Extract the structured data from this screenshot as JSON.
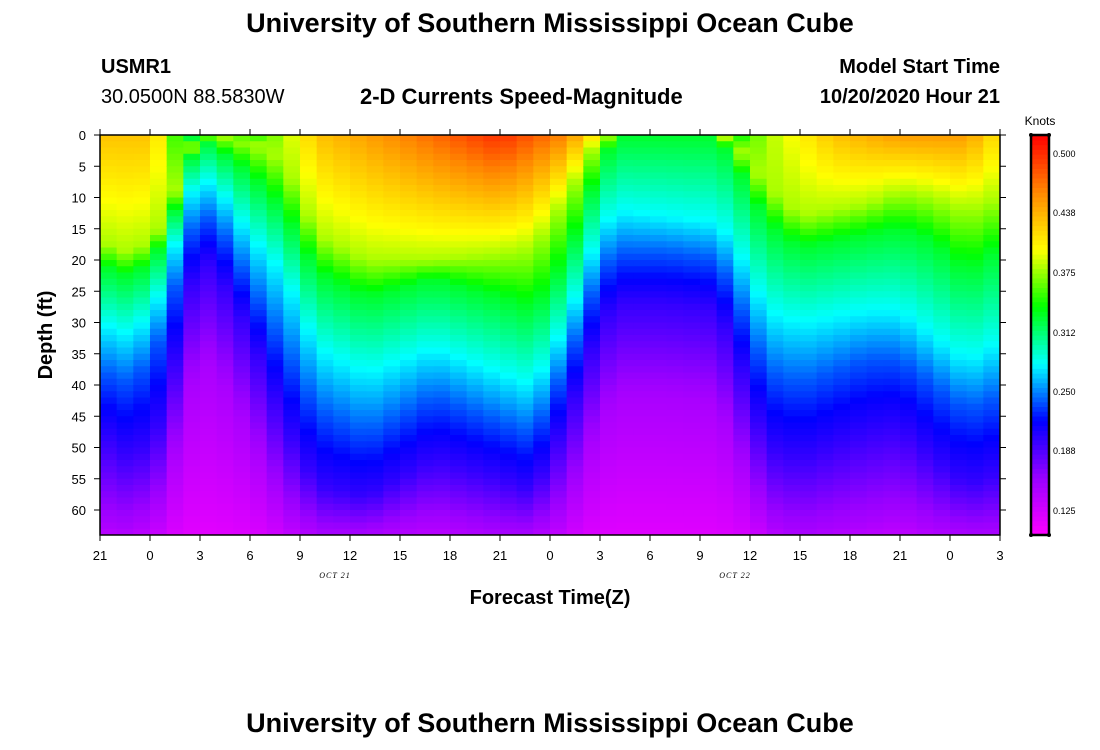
{
  "page": {
    "title": "University of Southern Mississippi Ocean Cube",
    "station_id": "USMR1",
    "station_coords": "30.0500N 88.5830W",
    "chart_heading": "2-D Currents Speed-Magnitude",
    "model_label": "Model Start Time",
    "model_time": "10/20/2020 Hour 21",
    "footer_title": "University of Southern Mississippi Ocean Cube"
  },
  "chart_data": {
    "type": "heatmap",
    "title": "2-D Currents Speed-Magnitude",
    "xlabel": "Forecast Time(Z)",
    "ylabel": "Depth (ft)",
    "x_tick_labels": [
      "21",
      "0",
      "3",
      "6",
      "9",
      "12",
      "15",
      "18",
      "21",
      "0",
      "3",
      "6",
      "9",
      "12",
      "15",
      "18",
      "21",
      "0",
      "3"
    ],
    "x_range_hours": [
      0,
      54
    ],
    "x_tick_step_hours": 3,
    "date_labels": [
      {
        "label": "OCT 21",
        "at_hour": 15
      },
      {
        "label": "OCT 22",
        "at_hour": 39
      }
    ],
    "y_tick_labels": [
      "0",
      "5",
      "10",
      "15",
      "20",
      "25",
      "30",
      "35",
      "40",
      "45",
      "50",
      "55",
      "60"
    ],
    "ylim_ft": [
      0,
      64
    ],
    "y_inverted": true,
    "colorbar": {
      "unit": "Knots",
      "range": [
        0.1,
        0.52
      ],
      "tick_labels": [
        "0.500",
        "0.438",
        "0.375",
        "0.312",
        "0.250",
        "0.188",
        "0.125"
      ],
      "tick_values": [
        0.5,
        0.438,
        0.375,
        0.312,
        0.25,
        0.188,
        0.125
      ],
      "palette": [
        "#ff00ff",
        "#9900ff",
        "#0000ff",
        "#00ffff",
        "#00ff00",
        "#ffff00",
        "#ff8800",
        "#ff0000"
      ]
    },
    "surface_speed_knots": [
      [
        0,
        0.43
      ],
      [
        3,
        0.43
      ],
      [
        4,
        0.39
      ],
      [
        5,
        0.32
      ],
      [
        6,
        0.3
      ],
      [
        7,
        0.31
      ],
      [
        9,
        0.34
      ],
      [
        11,
        0.38
      ],
      [
        13,
        0.43
      ],
      [
        18,
        0.46
      ],
      [
        24,
        0.5
      ],
      [
        28,
        0.46
      ],
      [
        30,
        0.4
      ],
      [
        32,
        0.33
      ],
      [
        36,
        0.31
      ],
      [
        38,
        0.33
      ],
      [
        40,
        0.38
      ],
      [
        44,
        0.43
      ],
      [
        48,
        0.45
      ],
      [
        52,
        0.45
      ],
      [
        54,
        0.41
      ]
    ],
    "speed_reference_depths_ft": [
      {
        "speed_knots": 0.38,
        "depth_profile": [
          [
            0,
            17
          ],
          [
            2,
            19
          ],
          [
            4,
            14
          ],
          [
            5,
            4
          ],
          [
            6,
            0
          ],
          [
            7,
            0
          ],
          [
            9,
            1
          ],
          [
            11,
            4
          ],
          [
            13,
            16
          ],
          [
            16,
            20
          ],
          [
            20,
            20
          ],
          [
            24,
            19
          ],
          [
            26,
            18
          ],
          [
            28,
            10
          ],
          [
            30,
            0
          ],
          [
            31,
            0
          ],
          [
            37,
            0
          ],
          [
            38,
            1
          ],
          [
            40,
            8
          ],
          [
            42,
            13
          ],
          [
            46,
            11
          ],
          [
            48,
            9
          ],
          [
            50,
            10
          ],
          [
            52,
            12
          ],
          [
            54,
            10
          ]
        ]
      },
      {
        "speed_knots": 0.33,
        "depth_profile": [
          [
            0,
            21
          ],
          [
            2,
            23
          ],
          [
            4,
            17
          ],
          [
            5,
            7
          ],
          [
            6,
            0
          ],
          [
            7,
            2
          ],
          [
            9,
            6
          ],
          [
            11,
            12
          ],
          [
            13,
            22
          ],
          [
            16,
            26
          ],
          [
            20,
            23
          ],
          [
            24,
            26
          ],
          [
            26,
            28
          ],
          [
            28,
            20
          ],
          [
            30,
            5
          ],
          [
            31,
            0
          ],
          [
            37,
            0
          ],
          [
            38,
            4
          ],
          [
            40,
            14
          ],
          [
            42,
            18
          ],
          [
            46,
            16
          ],
          [
            48,
            15
          ],
          [
            50,
            17
          ],
          [
            52,
            22
          ],
          [
            54,
            18
          ]
        ]
      },
      {
        "speed_knots": 0.28,
        "depth_profile": [
          [
            0,
            30
          ],
          [
            2,
            32
          ],
          [
            4,
            24
          ],
          [
            5,
            11
          ],
          [
            6,
            7
          ],
          [
            7,
            8
          ],
          [
            9,
            16
          ],
          [
            11,
            22
          ],
          [
            13,
            34
          ],
          [
            16,
            38
          ],
          [
            20,
            34
          ],
          [
            24,
            38
          ],
          [
            26,
            40
          ],
          [
            28,
            30
          ],
          [
            30,
            15
          ],
          [
            31,
            12
          ],
          [
            34,
            13
          ],
          [
            37,
            14
          ],
          [
            38,
            17
          ],
          [
            40,
            28
          ],
          [
            42,
            30
          ],
          [
            46,
            28
          ],
          [
            48,
            28
          ],
          [
            50,
            32
          ],
          [
            52,
            36
          ],
          [
            54,
            33
          ]
        ]
      },
      {
        "speed_knots": 0.24,
        "depth_profile": [
          [
            0,
            38
          ],
          [
            2,
            40
          ],
          [
            4,
            31
          ],
          [
            5,
            18
          ],
          [
            6,
            13
          ],
          [
            7,
            14
          ],
          [
            9,
            24
          ],
          [
            11,
            34
          ],
          [
            13,
            44
          ],
          [
            16,
            48
          ],
          [
            20,
            42
          ],
          [
            24,
            46
          ],
          [
            26,
            48
          ],
          [
            28,
            37
          ],
          [
            30,
            22
          ],
          [
            31,
            19
          ],
          [
            34,
            19
          ],
          [
            37,
            20
          ],
          [
            38,
            25
          ],
          [
            40,
            38
          ],
          [
            42,
            40
          ],
          [
            46,
            36
          ],
          [
            48,
            36
          ],
          [
            50,
            40
          ],
          [
            52,
            44
          ],
          [
            54,
            42
          ]
        ]
      },
      {
        "speed_knots": 0.2,
        "depth_profile": [
          [
            0,
            48
          ],
          [
            2,
            52
          ],
          [
            4,
            45
          ],
          [
            5,
            28
          ],
          [
            6,
            20
          ],
          [
            7,
            22
          ],
          [
            9,
            32
          ],
          [
            11,
            46
          ],
          [
            13,
            56
          ],
          [
            16,
            58
          ],
          [
            20,
            52
          ],
          [
            24,
            55
          ],
          [
            26,
            57
          ],
          [
            28,
            46
          ],
          [
            30,
            31
          ],
          [
            31,
            27
          ],
          [
            34,
            27
          ],
          [
            37,
            28
          ],
          [
            38,
            34
          ],
          [
            40,
            50
          ],
          [
            42,
            52
          ],
          [
            46,
            48
          ],
          [
            48,
            47
          ],
          [
            50,
            52
          ],
          [
            52,
            56
          ],
          [
            54,
            54
          ]
        ]
      },
      {
        "speed_knots": 0.15,
        "depth_profile": [
          [
            0,
            62
          ],
          [
            2,
            63
          ],
          [
            4,
            58
          ],
          [
            5,
            44
          ],
          [
            6,
            36
          ],
          [
            7,
            38
          ],
          [
            9,
            48
          ],
          [
            11,
            60
          ],
          [
            13,
            64
          ],
          [
            16,
            64
          ],
          [
            20,
            62
          ],
          [
            24,
            64
          ],
          [
            26,
            64
          ],
          [
            28,
            60
          ],
          [
            30,
            46
          ],
          [
            31,
            42
          ],
          [
            34,
            42
          ],
          [
            37,
            43
          ],
          [
            38,
            50
          ],
          [
            40,
            62
          ],
          [
            42,
            64
          ],
          [
            46,
            62
          ],
          [
            48,
            61
          ],
          [
            50,
            63
          ],
          [
            52,
            64
          ],
          [
            54,
            64
          ]
        ]
      }
    ]
  }
}
